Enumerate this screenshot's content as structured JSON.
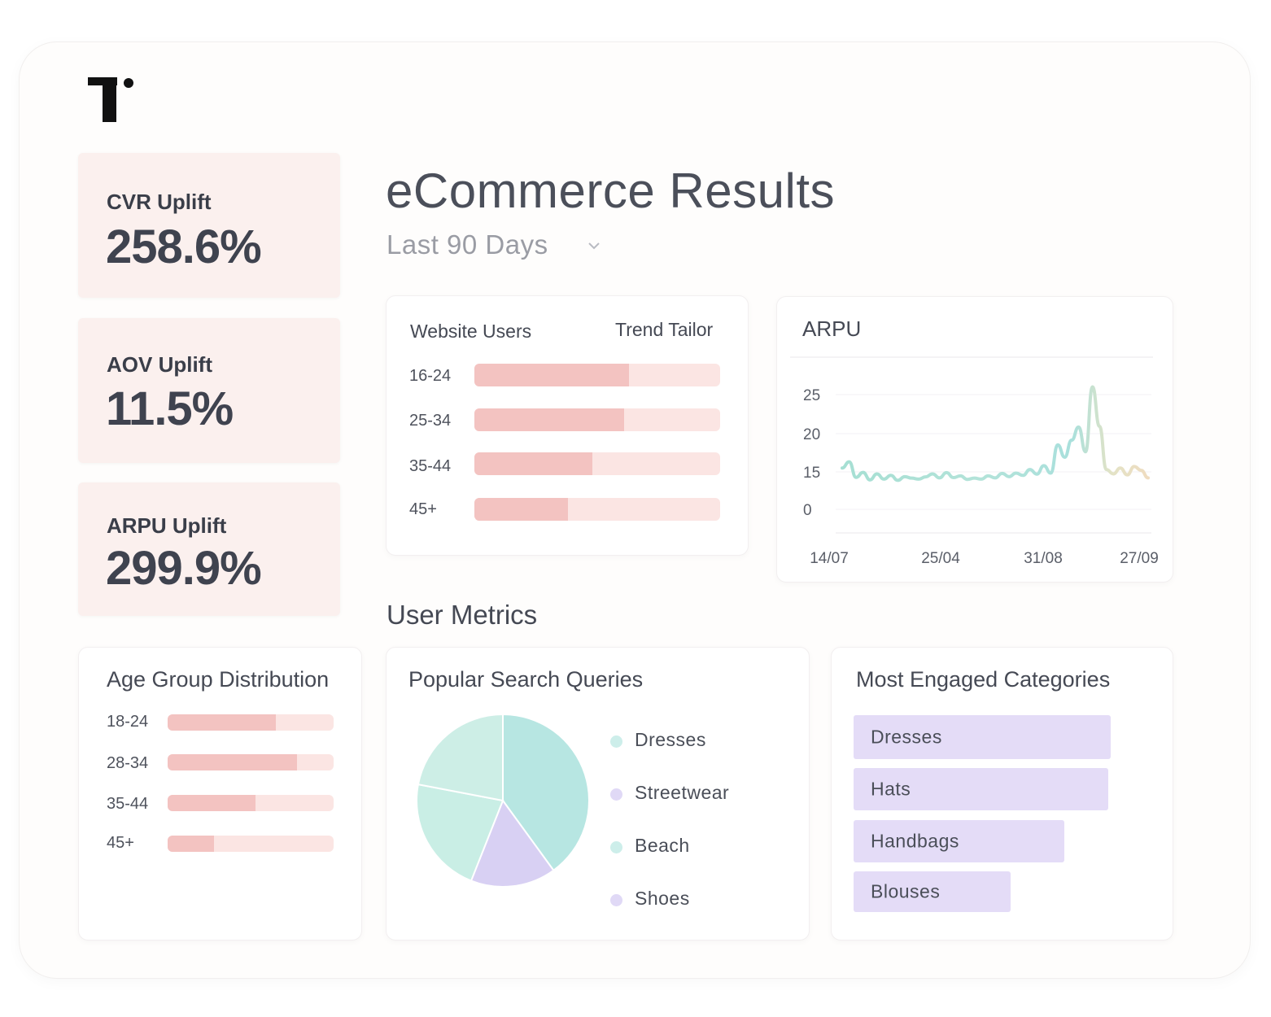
{
  "kpis": [
    {
      "label": "CVR Uplift",
      "value": "258.6%"
    },
    {
      "label": "AOV Uplift",
      "value": "11.5%"
    },
    {
      "label": "ARPU Uplift",
      "value": "299.9%"
    }
  ],
  "header": {
    "title": "eCommerce Results",
    "period": "Last 90 Days"
  },
  "website_users": {
    "title": "Website Users",
    "subtitle": "Trend Tailor",
    "rows": [
      {
        "label": "16-24",
        "fraction": 0.63
      },
      {
        "label": "25-34",
        "fraction": 0.61
      },
      {
        "label": "35-44",
        "fraction": 0.48
      },
      {
        "label": "45+",
        "fraction": 0.38
      }
    ]
  },
  "section": {
    "user_metrics": "User Metrics"
  },
  "age_distribution": {
    "title": "Age Group Distribution",
    "rows": [
      {
        "label": "18-24",
        "fraction": 0.65
      },
      {
        "label": "28-34",
        "fraction": 0.78
      },
      {
        "label": "35-44",
        "fraction": 0.53
      },
      {
        "label": "45+",
        "fraction": 0.28
      }
    ]
  },
  "search_queries": {
    "title": "Popular Search Queries",
    "legend": [
      {
        "label": "Dresses",
        "color": "#cdeeea"
      },
      {
        "label": "Streetwear",
        "color": "#e0d9f6"
      },
      {
        "label": "Beach",
        "color": "#cdeeea"
      },
      {
        "label": "Shoes",
        "color": "#e0d9f6"
      }
    ]
  },
  "engaged_categories": {
    "title": "Most Engaged Categories",
    "items": [
      {
        "label": "Dresses",
        "fraction": 1.0
      },
      {
        "label": "Hats",
        "fraction": 0.99
      },
      {
        "label": "Handbags",
        "fraction": 0.82
      },
      {
        "label": "Blouses",
        "fraction": 0.61
      }
    ]
  },
  "chart_data": [
    {
      "type": "line",
      "title": "ARPU",
      "y_ticks": [
        "25",
        "20",
        "15",
        "0"
      ],
      "x_ticks": [
        "14/07",
        "25/04",
        "31/08",
        "27/09"
      ],
      "grid": true,
      "series": [
        {
          "values": [
            15.5,
            16.3,
            12.8,
            14.8,
            11.8,
            14.2,
            12.1,
            13.6,
            11.6,
            13.1,
            12.5,
            12.1,
            13.0,
            14.2,
            12.6,
            14.7,
            12.7,
            13.4,
            12.0,
            12.5,
            12.1,
            13.4,
            12.6,
            14.4,
            13.1,
            14.5,
            13.6,
            15.3,
            14.1,
            15.8,
            14.5,
            18.5,
            16.9,
            19.1,
            20.8,
            17.6,
            26.0,
            20.9,
            15.3,
            14.2,
            15.5,
            13.8,
            15.7,
            15.2,
            12.6
          ]
        }
      ]
    },
    {
      "type": "pie",
      "title": "Popular Search Queries",
      "categories": [
        "Dresses",
        "Streetwear",
        "Beach",
        "Shoes"
      ],
      "values": [
        40,
        16,
        22,
        22
      ]
    }
  ]
}
